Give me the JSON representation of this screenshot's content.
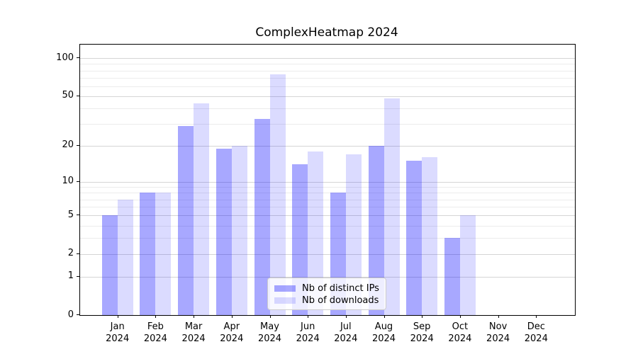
{
  "chart_data": {
    "type": "bar",
    "title": "ComplexHeatmap 2024",
    "categories": [
      "Jan",
      "Feb",
      "Mar",
      "Apr",
      "May",
      "Jun",
      "Jul",
      "Aug",
      "Sep",
      "Oct",
      "Nov",
      "Dec"
    ],
    "category_year": "2024",
    "series": [
      {
        "name": "Nb of distinct IPs",
        "values": [
          5,
          8,
          29,
          19,
          33,
          14,
          8,
          20,
          15,
          3,
          0,
          0
        ],
        "fill": "rgba(0,0,255,0.34)",
        "hex_on_white": "#a8a8ff"
      },
      {
        "name": "Nb of downloads",
        "values": [
          7,
          8,
          44,
          20,
          75,
          18,
          17,
          48,
          16,
          5,
          0,
          0
        ],
        "fill": "rgba(0,0,255,0.14)",
        "hex_on_white": "#dcdcff"
      }
    ],
    "y_axis": {
      "scale": "log1p",
      "ticks": [
        0,
        1,
        2,
        5,
        10,
        20,
        50,
        100
      ],
      "minor_gridlines": [
        3,
        4,
        6,
        7,
        8,
        9,
        30,
        40,
        60,
        70,
        80,
        90
      ],
      "ylim_top": 127
    },
    "legend": {
      "position": "bottom-center",
      "entries": [
        "Nb of distinct IPs",
        "Nb of downloads"
      ]
    },
    "grid": true
  },
  "colors": {
    "grid_major": "#d5d5d5",
    "grid_minor": "#ececec",
    "axis": "#000000",
    "legend_border": "#cccccc",
    "legend_bg": "rgba(255,255,255,0.8)",
    "background": "#ffffff"
  }
}
